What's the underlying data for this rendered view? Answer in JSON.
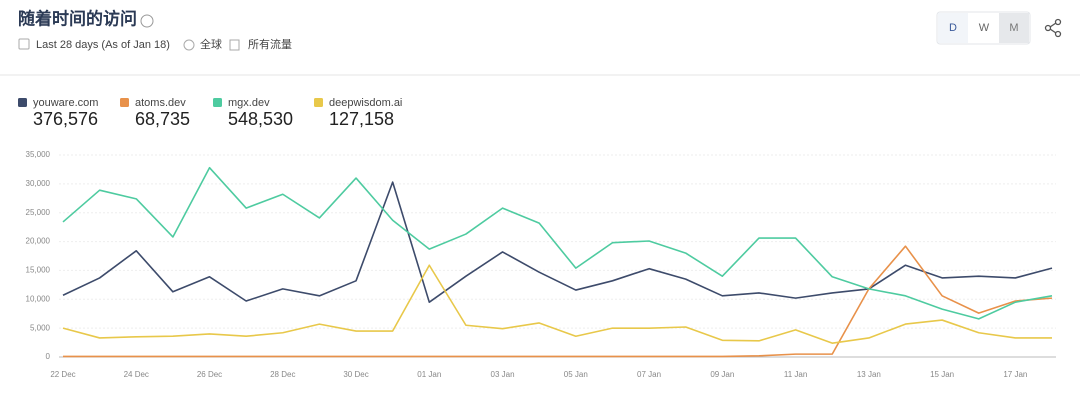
{
  "header": {
    "title": "随着时间的访问",
    "period": "Last 28 days (As of Jan 18)",
    "region": "全球",
    "traffic": "所有流量",
    "buttons": [
      "D",
      "W",
      "M"
    ]
  },
  "chart_data": {
    "type": "line",
    "categories": [
      "22 Dec",
      null,
      "24 Dec",
      null,
      "26 Dec",
      null,
      "28 Dec",
      null,
      "30 Dec",
      null,
      "01 Jan",
      null,
      "03 Jan",
      null,
      "05 Jan",
      null,
      "07 Jan",
      null,
      "09 Jan",
      null,
      "11 Jan",
      null,
      "13 Jan",
      null,
      "15 Jan",
      null,
      "17 Jan",
      null
    ],
    "series": [
      {
        "name": "youware.com",
        "total": "376,576",
        "color": "#3d4b6b",
        "values": [
          10700,
          13700,
          18400,
          11300,
          13900,
          9700,
          11800,
          10600,
          13200,
          30300,
          9500,
          14000,
          18200,
          14700,
          11600,
          13200,
          15300,
          13500,
          10600,
          11100,
          10200,
          11100,
          11800,
          15900,
          13700,
          14000,
          13700,
          15400
        ]
      },
      {
        "name": "atoms.dev",
        "total": "68,735",
        "color": "#e8914a",
        "values": [
          100,
          100,
          100,
          100,
          100,
          100,
          100,
          100,
          100,
          100,
          100,
          100,
          100,
          100,
          100,
          100,
          100,
          100,
          100,
          200,
          500,
          500,
          11800,
          19200,
          10600,
          7600,
          9700,
          10200
        ]
      },
      {
        "name": "mgx.dev",
        "total": "548,530",
        "color": "#4ecba0",
        "values": [
          23400,
          28900,
          27400,
          20800,
          32800,
          25800,
          28200,
          24100,
          31000,
          23700,
          18700,
          21300,
          25800,
          23200,
          15400,
          19800,
          20100,
          18000,
          14000,
          20600,
          20600,
          13900,
          11800,
          10600,
          8300,
          6600,
          9500,
          10600
        ]
      },
      {
        "name": "deepwisdom.ai",
        "total": "127,158",
        "color": "#e8c84a",
        "values": [
          5000,
          3300,
          3500,
          3600,
          4000,
          3600,
          4200,
          5700,
          4500,
          4500,
          15900,
          5500,
          4900,
          5900,
          3600,
          5000,
          5000,
          5200,
          2900,
          2800,
          4700,
          2400,
          3300,
          5700,
          6400,
          4200,
          3300,
          3300
        ]
      }
    ],
    "ylim": [
      0,
      35000
    ],
    "yticks": [
      0,
      {
        "value": 5000,
        "label": "5,000"
      },
      {
        "value": 10000,
        "label": "10,000"
      },
      {
        "value": 15000,
        "label": "15,000"
      },
      {
        "value": 20000,
        "label": "20,000"
      },
      {
        "value": 25000,
        "label": "25,000"
      },
      {
        "value": 30000,
        "label": "30,000"
      },
      {
        "value": 35000,
        "label": "35,000"
      }
    ],
    "grid": true
  }
}
